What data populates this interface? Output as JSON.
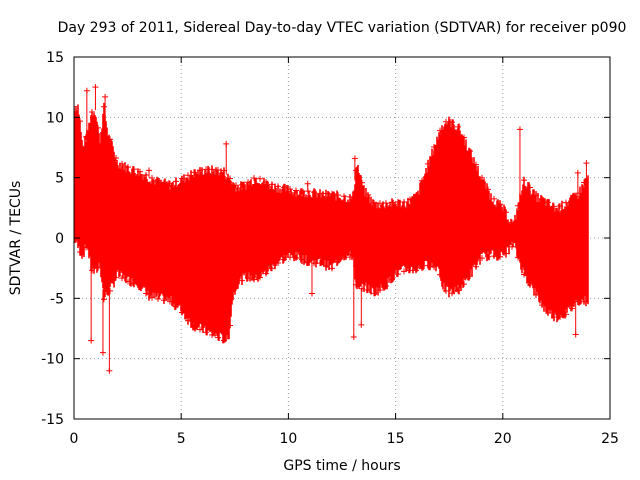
{
  "chart_data": {
    "type": "scatter",
    "title": "Day 293 of 2011, Sidereal Day-to-day VTEC variation (SDTVAR) for receiver p090",
    "xlabel": "GPS time / hours",
    "ylabel": "SDTVAR / TECUs",
    "xlim": [
      0,
      25
    ],
    "ylim": [
      -15,
      15
    ],
    "x_ticks": [
      0,
      5,
      10,
      15,
      20,
      25
    ],
    "y_ticks": [
      -15,
      -10,
      -5,
      0,
      5,
      10,
      15
    ],
    "x_tick_labels": [
      "0",
      "5",
      "10",
      "15",
      "20",
      "25"
    ],
    "y_tick_labels": [
      "-15",
      "-10",
      "-5",
      "0",
      "5",
      "10",
      "15"
    ],
    "grid": true,
    "marker": "+",
    "color": "#ff0000",
    "series": [
      {
        "name": "SDTVAR",
        "note": "dense point cloud, approximated by upper and lower envelopes",
        "x": [
          0.0,
          0.2,
          0.4,
          0.6,
          0.8,
          1.0,
          1.2,
          1.4,
          1.6,
          1.8,
          2.0,
          2.5,
          3.0,
          3.5,
          4.0,
          4.5,
          5.0,
          5.5,
          6.0,
          6.5,
          7.0,
          7.2,
          7.4,
          7.6,
          8.0,
          8.5,
          9.0,
          9.5,
          10.0,
          10.5,
          11.0,
          11.5,
          12.0,
          12.5,
          13.0,
          13.2,
          13.5,
          14.0,
          14.5,
          15.0,
          15.5,
          16.0,
          16.5,
          17.0,
          17.2,
          17.5,
          18.0,
          18.5,
          19.0,
          19.5,
          20.0,
          20.5,
          21.0,
          21.5,
          22.0,
          22.5,
          23.0,
          23.5,
          24.0
        ],
        "upper": [
          10.8,
          11.0,
          7.5,
          8.5,
          10.3,
          10.6,
          8.0,
          10.8,
          8.5,
          7.5,
          6.3,
          5.8,
          5.5,
          5.0,
          4.6,
          4.4,
          4.8,
          5.3,
          5.6,
          5.6,
          5.5,
          5.0,
          4.6,
          4.2,
          4.4,
          5.0,
          4.5,
          4.2,
          4.0,
          3.8,
          3.8,
          3.6,
          3.6,
          3.4,
          3.3,
          6.2,
          4.0,
          2.8,
          2.8,
          2.9,
          2.9,
          3.5,
          6.0,
          8.5,
          9.4,
          9.7,
          9.0,
          7.0,
          5.0,
          3.3,
          2.5,
          1.0,
          4.8,
          3.5,
          3.0,
          2.4,
          2.9,
          3.6,
          5.2
        ],
        "lower": [
          0.0,
          -0.8,
          -1.5,
          -0.5,
          -2.5,
          -3.0,
          -2.0,
          -5.0,
          -4.5,
          -4.0,
          -3.0,
          -3.5,
          -3.8,
          -4.8,
          -5.0,
          -5.2,
          -6.0,
          -7.2,
          -7.6,
          -8.0,
          -8.4,
          -8.5,
          -5.0,
          -3.8,
          -3.2,
          -3.4,
          -2.8,
          -2.0,
          -1.5,
          -1.6,
          -2.0,
          -2.0,
          -2.5,
          -1.5,
          -1.5,
          -4.5,
          -4.0,
          -4.5,
          -4.0,
          -3.0,
          -2.6,
          -2.6,
          -2.2,
          -2.4,
          -4.0,
          -4.6,
          -4.2,
          -3.0,
          -1.6,
          -1.4,
          -1.5,
          -0.5,
          -3.0,
          -4.5,
          -6.0,
          -6.6,
          -6.2,
          -5.2,
          -5.2
        ]
      }
    ],
    "outliers": [
      {
        "x": 0.6,
        "y": 12.2
      },
      {
        "x": 1.0,
        "y": 12.5
      },
      {
        "x": 0.8,
        "y": -8.5
      },
      {
        "x": 1.35,
        "y": -9.5
      },
      {
        "x": 1.65,
        "y": -11.0
      },
      {
        "x": 1.45,
        "y": 11.7
      },
      {
        "x": 7.1,
        "y": 7.8
      },
      {
        "x": 3.5,
        "y": 5.6
      },
      {
        "x": 10.9,
        "y": 4.5
      },
      {
        "x": 11.1,
        "y": -4.6
      },
      {
        "x": 13.05,
        "y": -8.2
      },
      {
        "x": 13.1,
        "y": 6.6
      },
      {
        "x": 13.4,
        "y": -7.2
      },
      {
        "x": 20.8,
        "y": 9.0
      },
      {
        "x": 23.4,
        "y": -8.0
      },
      {
        "x": 23.5,
        "y": 5.4
      },
      {
        "x": 23.9,
        "y": 6.2
      }
    ]
  }
}
